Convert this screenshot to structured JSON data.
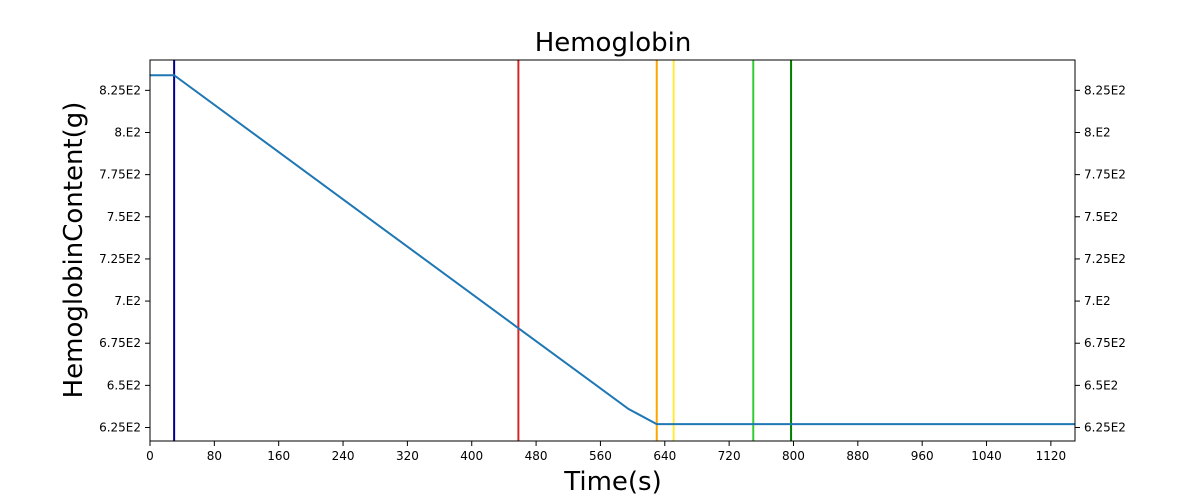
{
  "chart_data": {
    "type": "line",
    "title": "Hemoglobin",
    "xlabel": "Time(s)",
    "ylabel": "HemoglobinContent(g)",
    "xlim": [
      0,
      1150
    ],
    "ylim": [
      617,
      843
    ],
    "x_ticks": [
      0,
      80,
      160,
      240,
      320,
      400,
      480,
      560,
      640,
      720,
      800,
      880,
      960,
      1040,
      1120
    ],
    "x_tick_labels": [
      "0",
      "80",
      "160",
      "240",
      "320",
      "400",
      "480",
      "560",
      "640",
      "720",
      "800",
      "880",
      "960",
      "1040",
      "1120"
    ],
    "y_ticks": [
      625,
      650,
      675,
      700,
      725,
      750,
      775,
      800,
      825
    ],
    "y_tick_labels": [
      "6.25E2",
      "6.5E2",
      "6.75E2",
      "7.E2",
      "7.25E2",
      "7.5E2",
      "7.75E2",
      "8.E2",
      "8.25E2"
    ],
    "y_ticks_on_right": true,
    "grid": false,
    "series": [
      {
        "color": "#1f77b4",
        "x": [
          0,
          30,
          455,
          595,
          630,
          1150
        ],
        "y": [
          834,
          834,
          685,
          636,
          627,
          627
        ]
      }
    ],
    "vertical_lines": [
      {
        "x": 30,
        "color": "#00008b"
      },
      {
        "x": 458,
        "color": "#d62728"
      },
      {
        "x": 630,
        "color": "#ffa500"
      },
      {
        "x": 651,
        "color": "#ffeb3b"
      },
      {
        "x": 750,
        "color": "#32cd32"
      },
      {
        "x": 797,
        "color": "#008000"
      }
    ]
  }
}
